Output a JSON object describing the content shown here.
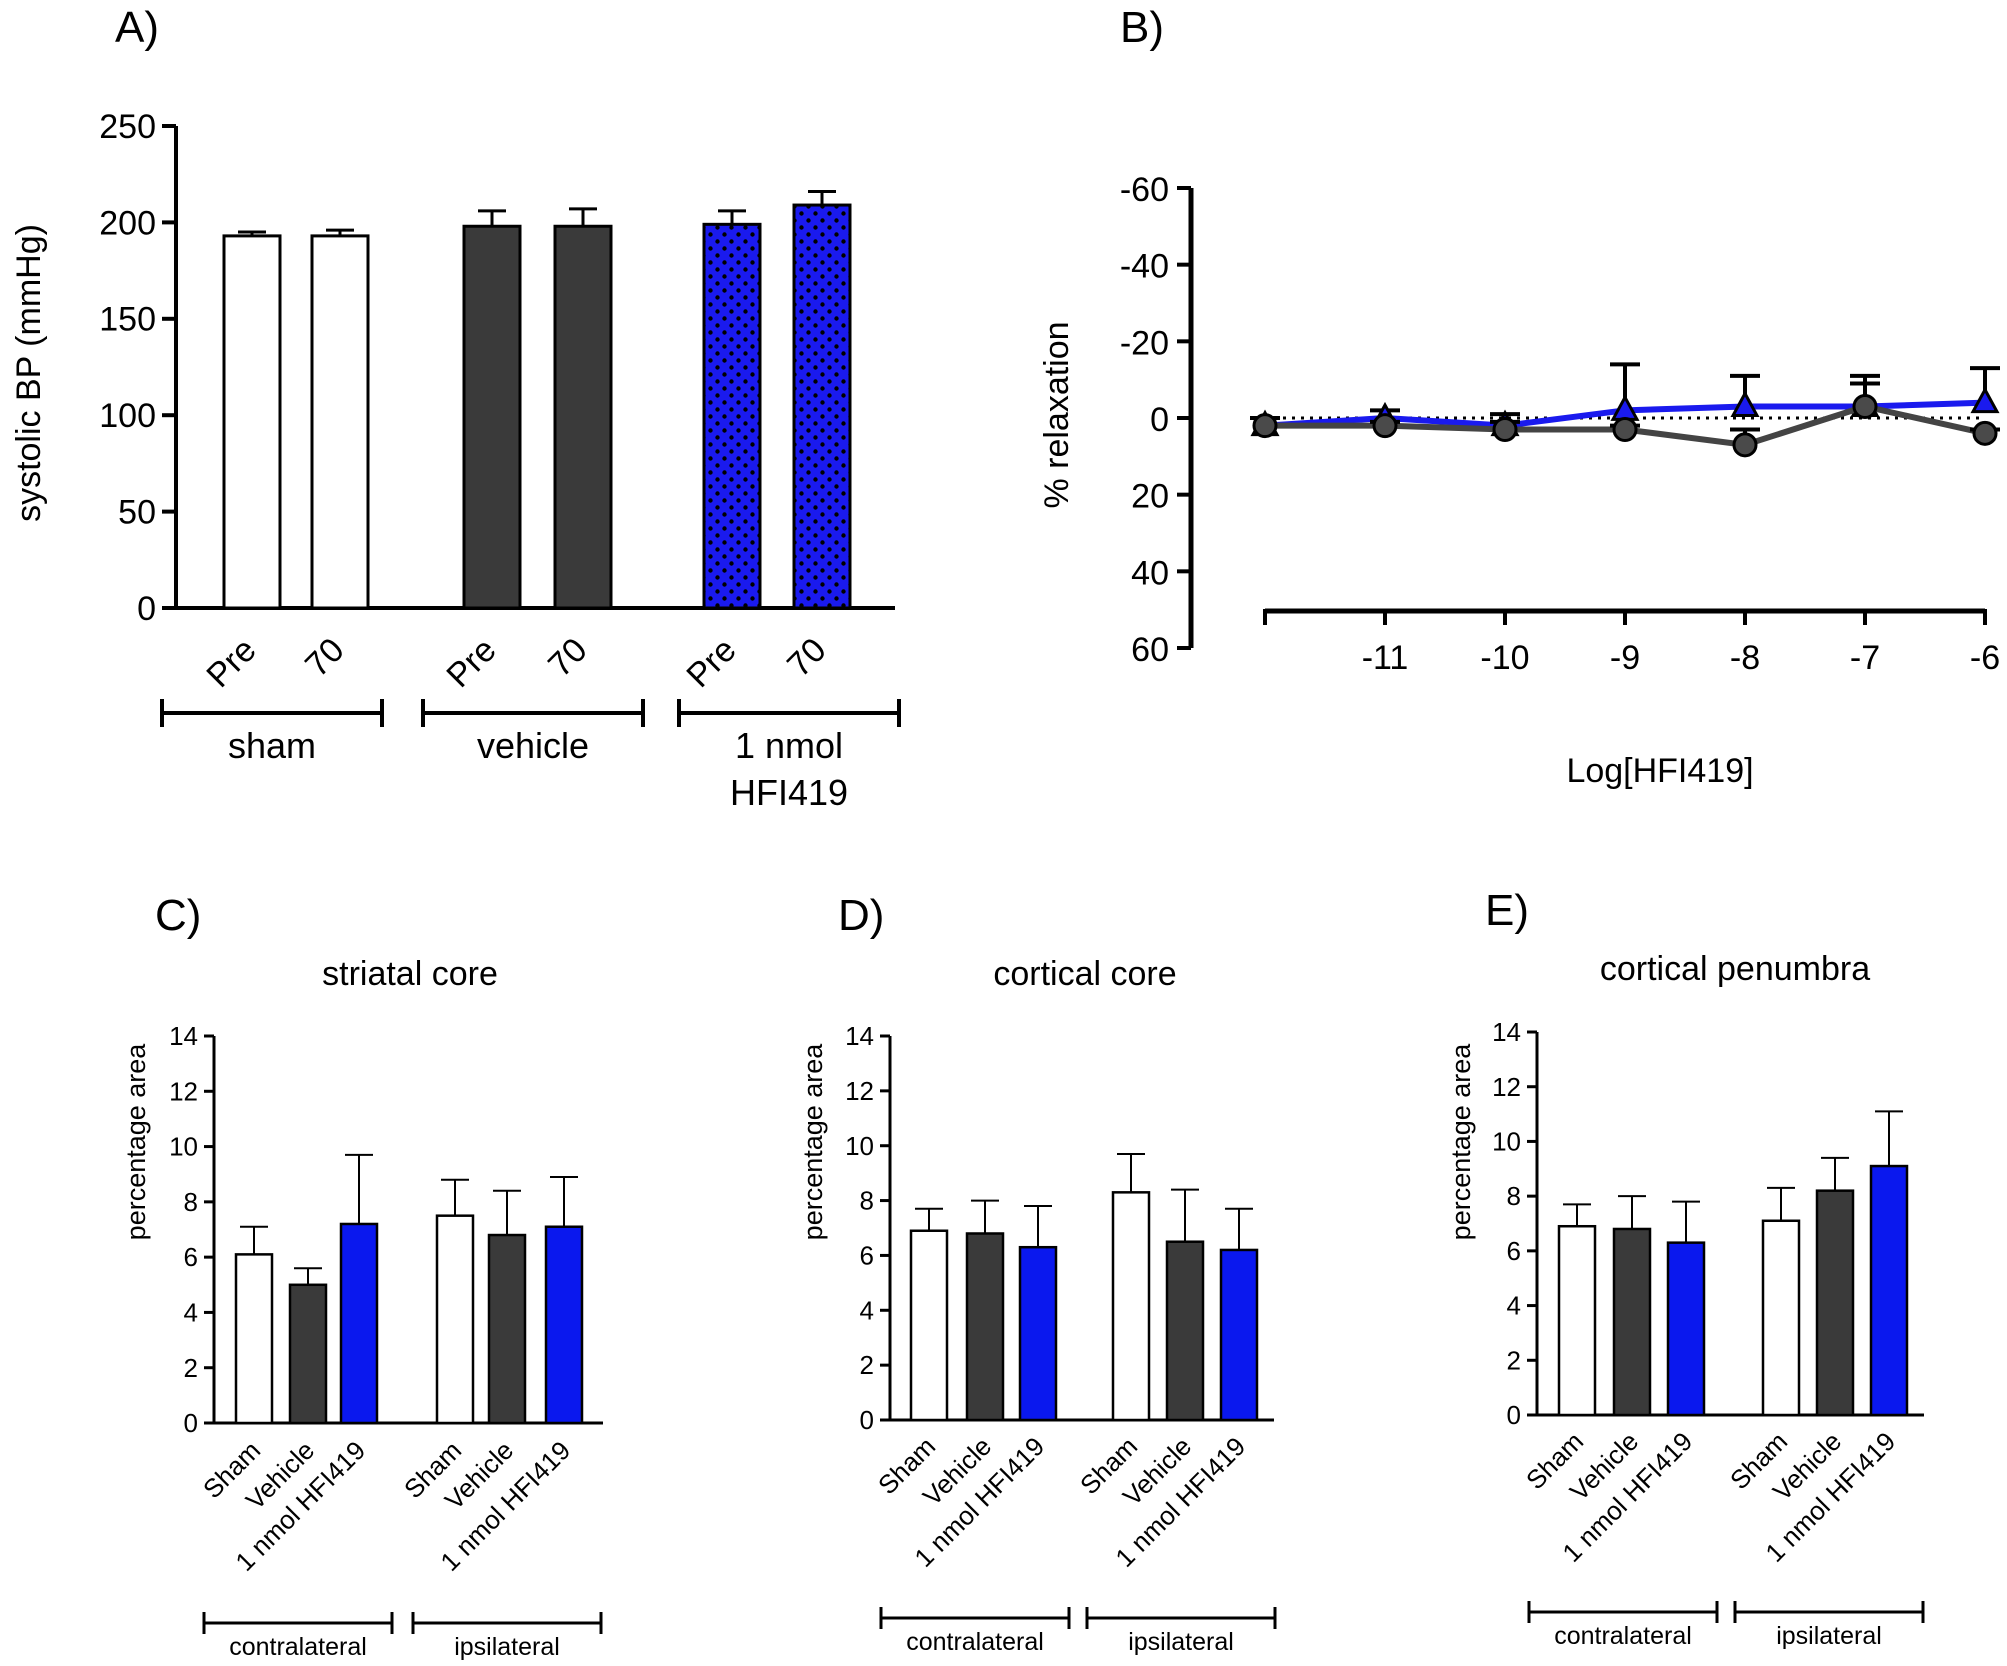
{
  "chart_data": [
    {
      "panel": "A)",
      "type": "bar",
      "title": "",
      "ylabel": "systolic BP (mmHg)",
      "ylim": [
        0,
        250
      ],
      "yticks": [
        "0",
        "50",
        "100",
        "150",
        "200",
        "250"
      ],
      "categories": [
        "Pre",
        "70",
        "Pre",
        "70",
        "Pre",
        "70"
      ],
      "values": [
        193,
        193,
        198,
        198,
        199,
        209
      ],
      "errors": [
        2,
        3,
        8,
        9,
        7,
        7
      ],
      "fills": [
        "#ffffff",
        "#ffffff",
        "#3a3a3a",
        "#3a3a3a",
        "#1a1aee",
        "#1a1aee"
      ],
      "patterned": [
        false,
        false,
        false,
        false,
        true,
        true
      ],
      "groups": [
        {
          "lines": [
            "sham"
          ]
        },
        {
          "lines": [
            "vehicle"
          ]
        },
        {
          "lines": [
            "1 nmol",
            "HFI419"
          ]
        }
      ]
    },
    {
      "panel": "B)",
      "type": "line",
      "xlabel": "Log[HFI419]",
      "ylabel": "% relaxation",
      "ylim": [
        60,
        -60
      ],
      "yticks": [
        "-60",
        "-40",
        "-20",
        "0",
        "20",
        "40",
        "60"
      ],
      "xlim": [
        -12,
        -6
      ],
      "xticks": [
        "-11",
        "-10",
        "-9",
        "-8",
        "-7",
        "-6"
      ],
      "reference_line": 0,
      "series": [
        {
          "name": "HFI419",
          "color": "#1a1aee",
          "marker": "triangle",
          "x": [
            -12,
            -11,
            -10,
            -9,
            -8,
            -7,
            -6
          ],
          "y": [
            2,
            0,
            2,
            -2,
            -3,
            -3,
            -4
          ],
          "err": [
            2,
            2,
            3,
            12,
            8,
            6,
            9
          ]
        },
        {
          "name": "vehicle",
          "color": "#444444",
          "marker": "circle",
          "x": [
            -12,
            -11,
            -10,
            -9,
            -8,
            -7,
            -6
          ],
          "y": [
            2,
            2,
            3,
            3,
            7,
            -3,
            4
          ],
          "err": [
            2,
            1,
            2,
            1,
            4,
            8,
            1
          ]
        }
      ]
    },
    {
      "panel": "C)",
      "type": "bar",
      "title": "striatal core",
      "ylabel": "percentage area",
      "ylim": [
        0,
        14
      ],
      "yticks": [
        "0",
        "2",
        "4",
        "6",
        "8",
        "10",
        "12",
        "14"
      ],
      "categories": [
        "Sham",
        "Vehicle",
        "1 nmol HFI419",
        "Sham",
        "Vehicle",
        "1 nmol HFI419"
      ],
      "values": [
        6.1,
        5.0,
        7.2,
        7.5,
        6.8,
        7.1
      ],
      "errors": [
        1.0,
        0.6,
        2.5,
        1.3,
        1.6,
        1.8
      ],
      "fills": [
        "#ffffff",
        "#3a3a3a",
        "#0a18ee",
        "#ffffff",
        "#3a3a3a",
        "#0a18ee"
      ],
      "groups": [
        {
          "lines": [
            "contralateral"
          ]
        },
        {
          "lines": [
            "ipsilateral"
          ]
        }
      ]
    },
    {
      "panel": "D)",
      "type": "bar",
      "title": "cortical core",
      "ylabel": "percentage area",
      "ylim": [
        0,
        14
      ],
      "yticks": [
        "0",
        "2",
        "4",
        "6",
        "8",
        "10",
        "12",
        "14"
      ],
      "categories": [
        "Sham",
        "Vehicle",
        "1 nmol HFI419",
        "Sham",
        "Vehicle",
        "1 nmol HFI419"
      ],
      "values": [
        6.9,
        6.8,
        6.3,
        8.3,
        6.5,
        6.2
      ],
      "errors": [
        0.8,
        1.2,
        1.5,
        1.4,
        1.9,
        1.5
      ],
      "fills": [
        "#ffffff",
        "#3a3a3a",
        "#0a18ee",
        "#ffffff",
        "#3a3a3a",
        "#0a18ee"
      ],
      "groups": [
        {
          "lines": [
            "contralateral"
          ]
        },
        {
          "lines": [
            "ipsilateral"
          ]
        }
      ]
    },
    {
      "panel": "E)",
      "type": "bar",
      "title": "cortical penumbra",
      "ylabel": "percentage area",
      "ylim": [
        0,
        14
      ],
      "yticks": [
        "0",
        "2",
        "4",
        "6",
        "8",
        "10",
        "12",
        "14"
      ],
      "categories": [
        "Sham",
        "Vehicle",
        "1 nmol HFI419",
        "Sham",
        "Vehicle",
        "1 nmol HFI419"
      ],
      "values": [
        6.9,
        6.8,
        6.3,
        7.1,
        8.2,
        9.1
      ],
      "errors": [
        0.8,
        1.2,
        1.5,
        1.2,
        1.2,
        2.0
      ],
      "fills": [
        "#ffffff",
        "#3a3a3a",
        "#0a18ee",
        "#ffffff",
        "#3a3a3a",
        "#0a18ee"
      ],
      "groups": [
        {
          "lines": [
            "contralateral"
          ]
        },
        {
          "lines": [
            "ipsilateral"
          ]
        }
      ]
    }
  ]
}
